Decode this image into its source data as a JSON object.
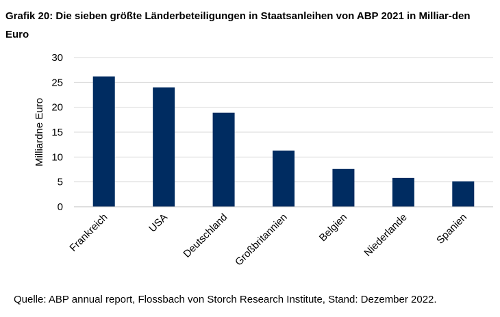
{
  "title": "Grafik 20: Die sieben größte Länderbeteiligungen in Staatsanleihen von ABP 2021 in Milliar-den Euro",
  "source": "Quelle: ABP annual report, Flossbach von Storch Research Institute, Stand: Dezember 2022.",
  "colors": {
    "bar": "#002c61",
    "grid": "#d9d9d9",
    "axis": "#bfbfbf"
  },
  "chart_data": {
    "type": "bar",
    "title": "Grafik 20: Die sieben größte Länderbeteiligungen in Staatsanleihen von ABP 2021 in Milliar-den Euro",
    "xlabel": "",
    "ylabel": "Milliardne Euro",
    "categories": [
      "Frankreich",
      "USA",
      "Deutschland",
      "Großbritannien",
      "Belgien",
      "Niederlande",
      "Spanien"
    ],
    "values": [
      26.2,
      24.0,
      18.9,
      11.3,
      7.6,
      5.8,
      5.1
    ],
    "ylim": [
      0,
      30
    ],
    "yticks": [
      0,
      5,
      10,
      15,
      20,
      25,
      30
    ],
    "grid": true,
    "legend": "none"
  }
}
